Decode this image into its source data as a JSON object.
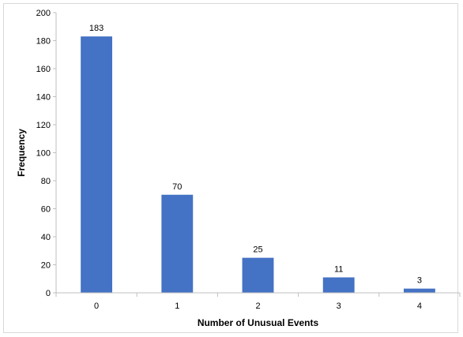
{
  "chart_data": {
    "type": "bar",
    "categories": [
      "0",
      "1",
      "2",
      "3",
      "4"
    ],
    "values": [
      183,
      70,
      25,
      11,
      3
    ],
    "data_labels": [
      "183",
      "70",
      "25",
      "11",
      "3"
    ],
    "xlabel": "Number of Unusual Events",
    "ylabel": "Frequency",
    "ylim": [
      0,
      200
    ],
    "yticks": [
      0,
      20,
      40,
      60,
      80,
      100,
      120,
      140,
      160,
      180,
      200
    ],
    "bar_color": "#4472C4",
    "grid": false,
    "legend": "none"
  }
}
